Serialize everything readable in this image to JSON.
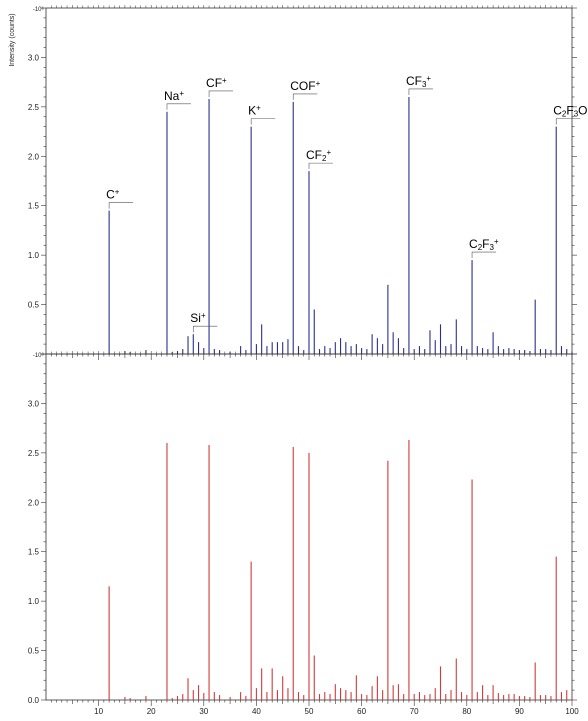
{
  "chart_data": [
    {
      "type": "bar",
      "panel": "top",
      "ylabel": "Intensity (counts)",
      "y_exponent_label": "10⁶",
      "ylim": [
        0,
        3.5
      ],
      "xlim": [
        0,
        100
      ],
      "y_ticks": [
        0.5,
        1.0,
        1.5,
        2.0,
        2.5,
        3.0
      ],
      "y_tick_labels": [
        "0.5",
        "1.0",
        "1.5",
        "2.0",
        "2.5",
        "3.0"
      ],
      "color": "#2a2f8f",
      "series": [
        {
          "x": [
            12,
            15,
            16,
            19,
            23,
            24,
            25,
            26,
            27,
            28,
            29,
            30,
            31,
            32,
            33,
            35,
            37,
            38,
            39,
            40,
            41,
            42,
            43,
            44,
            45,
            46,
            47,
            48,
            49,
            50,
            51,
            52,
            53,
            54,
            55,
            56,
            57,
            58,
            59,
            60,
            61,
            62,
            63,
            64,
            65,
            66,
            67,
            68,
            69,
            70,
            71,
            72,
            73,
            74,
            75,
            76,
            77,
            78,
            79,
            80,
            81,
            82,
            83,
            84,
            85,
            86,
            87,
            88,
            89,
            90,
            91,
            92,
            93,
            94,
            95,
            96,
            97,
            98,
            99,
            100
          ],
          "values": [
            1.45,
            0.03,
            0.02,
            0.04,
            2.45,
            0.02,
            0.03,
            0.05,
            0.18,
            0.2,
            0.12,
            0.06,
            2.58,
            0.05,
            0.04,
            0.02,
            0.08,
            0.04,
            2.3,
            0.1,
            0.3,
            0.08,
            0.12,
            0.12,
            0.12,
            0.15,
            2.55,
            0.08,
            0.04,
            1.85,
            0.45,
            0.05,
            0.08,
            0.06,
            0.12,
            0.16,
            0.12,
            0.08,
            0.1,
            0.06,
            0.05,
            0.2,
            0.16,
            0.1,
            0.7,
            0.22,
            0.16,
            0.06,
            2.6,
            0.05,
            0.08,
            0.05,
            0.24,
            0.14,
            0.3,
            0.08,
            0.1,
            0.35,
            0.08,
            0.05,
            0.95,
            0.08,
            0.06,
            0.05,
            0.22,
            0.08,
            0.05,
            0.06,
            0.05,
            0.04,
            0.04,
            0.03,
            0.55,
            0.05,
            0.05,
            0.04,
            2.3,
            0.08,
            0.05,
            0.02
          ]
        }
      ],
      "annotations": [
        {
          "x": 12,
          "label": "C",
          "sup": "+"
        },
        {
          "x": 23,
          "label": "Na",
          "sup": "+"
        },
        {
          "x": 28,
          "label": "Si",
          "sup": "+"
        },
        {
          "x": 31,
          "label": "CF",
          "sup": "+"
        },
        {
          "x": 39,
          "label": "K",
          "sup": "+"
        },
        {
          "x": 47,
          "label": "COF",
          "sup": "+"
        },
        {
          "x": 50,
          "label": "CF",
          "sub": "2",
          "sup": "+"
        },
        {
          "x": 69,
          "label": "CF",
          "sub": "3",
          "sup": "+"
        },
        {
          "x": 81,
          "label": "C",
          "sub": "2",
          "label2": "F",
          "sub2": "3",
          "sup": "+"
        },
        {
          "x": 97,
          "label": "C",
          "sub": "2",
          "label2": "F",
          "sub2": "3",
          "label3": "O",
          "sup": "+"
        }
      ]
    },
    {
      "type": "bar",
      "panel": "bottom",
      "y_exponent_label": "10⁶",
      "ylim": [
        0,
        3.5
      ],
      "xlim": [
        0,
        100
      ],
      "y_ticks": [
        0.0,
        0.5,
        1.0,
        1.5,
        2.0,
        2.5,
        3.0
      ],
      "y_tick_labels": [
        "0.0",
        "0.5",
        "1.0",
        "1.5",
        "2.0",
        "2.5",
        "3.0"
      ],
      "x_ticks": [
        10,
        20,
        30,
        40,
        50,
        60,
        70,
        80,
        90,
        100
      ],
      "x_tick_labels": [
        "10",
        "20",
        "30",
        "40",
        "50",
        "60",
        "70",
        "80",
        "90",
        "100"
      ],
      "color": "#d23a3a",
      "series": [
        {
          "x": [
            12,
            15,
            16,
            19,
            23,
            24,
            25,
            26,
            27,
            28,
            29,
            30,
            31,
            32,
            33,
            35,
            37,
            38,
            39,
            40,
            41,
            42,
            43,
            44,
            45,
            46,
            47,
            48,
            49,
            50,
            51,
            52,
            53,
            54,
            55,
            56,
            57,
            58,
            59,
            60,
            61,
            62,
            63,
            64,
            65,
            66,
            67,
            68,
            69,
            70,
            71,
            72,
            73,
            74,
            75,
            76,
            77,
            78,
            79,
            80,
            81,
            82,
            83,
            84,
            85,
            86,
            87,
            88,
            89,
            90,
            91,
            92,
            93,
            94,
            95,
            96,
            97,
            98,
            99,
            100
          ],
          "values": [
            1.15,
            0.03,
            0.02,
            0.04,
            2.6,
            0.02,
            0.04,
            0.06,
            0.22,
            0.1,
            0.15,
            0.07,
            2.58,
            0.08,
            0.05,
            0.03,
            0.08,
            0.04,
            1.4,
            0.12,
            0.32,
            0.08,
            0.32,
            0.1,
            0.24,
            0.12,
            2.56,
            0.08,
            0.05,
            2.5,
            0.45,
            0.06,
            0.08,
            0.06,
            0.16,
            0.12,
            0.1,
            0.08,
            0.25,
            0.06,
            0.05,
            0.14,
            0.24,
            0.1,
            2.42,
            0.15,
            0.16,
            0.06,
            2.63,
            0.06,
            0.08,
            0.05,
            0.06,
            0.12,
            0.34,
            0.06,
            0.1,
            0.42,
            0.08,
            0.05,
            2.23,
            0.08,
            0.15,
            0.05,
            0.15,
            0.07,
            0.05,
            0.06,
            0.06,
            0.04,
            0.04,
            0.03,
            0.38,
            0.05,
            0.05,
            0.04,
            1.45,
            0.08,
            0.1,
            0.02
          ]
        }
      ]
    }
  ]
}
